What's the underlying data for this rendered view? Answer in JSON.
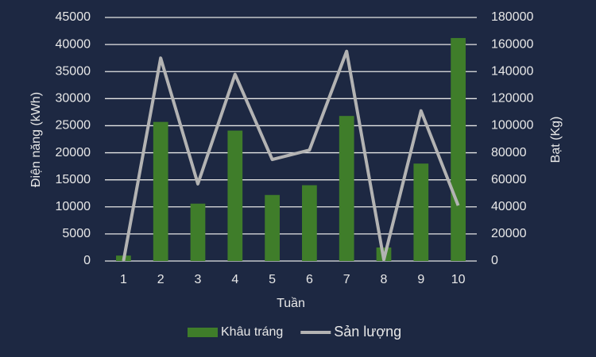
{
  "chart_data": {
    "type": "bar",
    "x_label": "Tuần",
    "y_label": "Điện năng (kWh)",
    "y2_label": "Bạt (Kg)",
    "categories": [
      "1",
      "2",
      "3",
      "4",
      "5",
      "6",
      "7",
      "8",
      "9",
      "10"
    ],
    "series": [
      {
        "name": "Khâu tráng",
        "type": "bar",
        "color": "#3f7d2a",
        "values": [
          1000,
          25700,
          10600,
          24100,
          12200,
          14000,
          26800,
          2500,
          18000,
          41200
        ]
      },
      {
        "name": "Sản lượng",
        "type": "line",
        "axis": "y2",
        "color": "#b3b3b3",
        "values": [
          0,
          150000,
          57000,
          138000,
          75000,
          82000,
          155000,
          1000,
          111000,
          41000
        ]
      }
    ],
    "ylim": [
      0,
      45000
    ],
    "yticks": [
      0,
      5000,
      10000,
      15000,
      20000,
      25000,
      30000,
      35000,
      40000,
      45000
    ],
    "y2lim": [
      0,
      180000
    ],
    "y2ticks": [
      0,
      20000,
      40000,
      60000,
      80000,
      100000,
      120000,
      140000,
      160000,
      180000
    ],
    "grid": true
  }
}
